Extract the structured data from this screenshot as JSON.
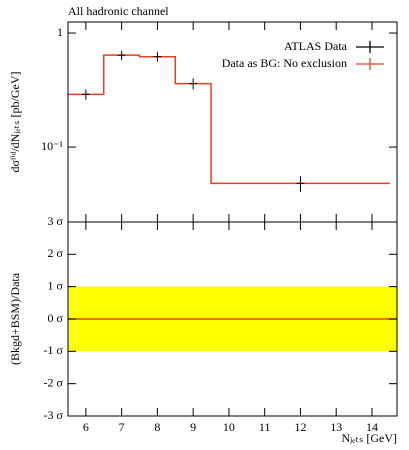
{
  "chart_data": [
    {
      "type": "histogram",
      "title": "All hadronic channel",
      "ylabel": "dσᶠⁱᵈ/dNⱼₑₜₛ [pb/GeV]",
      "log": true,
      "xlim": [
        5.5,
        14.7
      ],
      "ylim": [
        0.022,
        1.25
      ],
      "xticks": [
        6,
        7,
        8,
        9,
        10,
        11,
        12,
        13,
        14
      ],
      "yticks": [
        1,
        {
          "value": 0.1,
          "label": "10⁻¹"
        }
      ],
      "legend": "upper right",
      "bins": [
        5.5,
        6.5,
        7.5,
        8.5,
        9.5,
        14.5
      ],
      "series": [
        {
          "name": "ATLAS Data",
          "color": "#000000",
          "x": [
            6,
            7,
            8,
            9,
            12
          ],
          "values": [
            0.29,
            0.64,
            0.62,
            0.36,
            0.048
          ],
          "errors": [
            0.03,
            0.06,
            0.06,
            0.04,
            0.0075
          ]
        },
        {
          "name": "Data as BG: No exclusion",
          "color": "#e8401c",
          "values": [
            0.29,
            0.64,
            0.62,
            0.36,
            0.048
          ]
        }
      ]
    },
    {
      "type": "ratio",
      "ylabel": "(Bkgd+BSM)/Data",
      "xlabel": "Nⱼₑₜₛ [GeV]",
      "xlim": [
        5.5,
        14.7
      ],
      "ylim": [
        -3,
        3
      ],
      "xticks": [
        6,
        7,
        8,
        9,
        10,
        11,
        12,
        13,
        14
      ],
      "yticks": [
        {
          "value": 3,
          "label": "3 σ"
        },
        {
          "value": 2,
          "label": "2 σ"
        },
        {
          "value": 1,
          "label": "1 σ"
        },
        {
          "value": 0,
          "label": "0 σ"
        },
        {
          "value": -1,
          "label": "-1 σ"
        },
        {
          "value": -2,
          "label": "-2 σ"
        },
        {
          "value": -3,
          "label": "-3 σ"
        }
      ],
      "band": [
        -1,
        1
      ],
      "band_color": "#ffff00",
      "line": 0,
      "line_color": "#e8401c"
    }
  ]
}
